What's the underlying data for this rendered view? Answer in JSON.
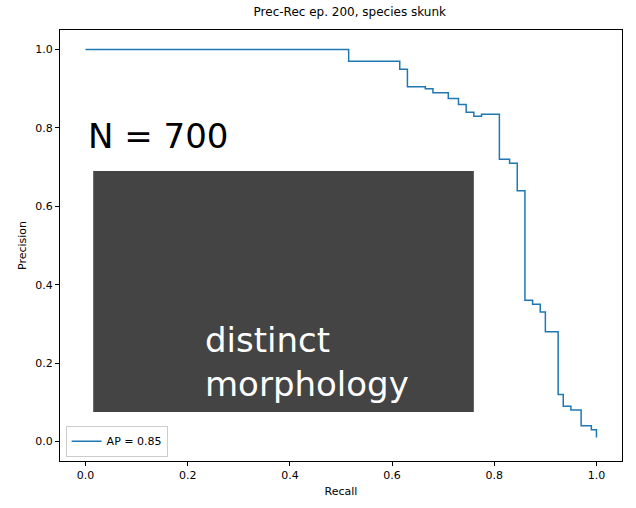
{
  "chart_data": {
    "type": "line",
    "title": "Prec-Rec ep. 200, species skunk",
    "x_label": "Recall",
    "y_label": "Precision",
    "series": [
      {
        "name": "AP = 0.85",
        "color": "#1f77b4",
        "x": [
          0.0,
          0.515,
          0.615,
          0.63,
          0.665,
          0.68,
          0.71,
          0.73,
          0.745,
          0.76,
          0.775,
          0.81,
          0.83,
          0.845,
          0.86,
          0.875,
          0.89,
          0.9,
          0.925,
          0.935,
          0.95,
          0.97,
          0.99,
          1.0
        ],
        "values": [
          1.0,
          0.97,
          0.95,
          0.905,
          0.9,
          0.89,
          0.875,
          0.86,
          0.84,
          0.83,
          0.835,
          0.72,
          0.71,
          0.64,
          0.36,
          0.35,
          0.33,
          0.28,
          0.12,
          0.09,
          0.08,
          0.04,
          0.03,
          0.01
        ]
      }
    ],
    "xlim": [
      -0.05,
      1.05
    ],
    "ylim": [
      -0.05,
      1.05
    ],
    "xticks": [
      {
        "value": 0,
        "label": "0.0"
      },
      0.2,
      0.4,
      0.6,
      0.8,
      {
        "value": 1,
        "label": "1.0"
      }
    ],
    "yticks": [
      {
        "value": 0,
        "label": "0.0"
      },
      0.2,
      0.4,
      0.6,
      0.8,
      {
        "value": 1,
        "label": "1.0"
      }
    ],
    "grid": false,
    "legend": "lower left",
    "annotations": [
      "N = 700",
      "distinct morphology"
    ]
  }
}
